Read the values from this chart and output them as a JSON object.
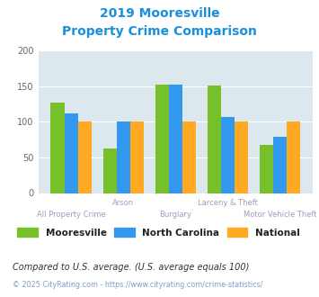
{
  "title_line1": "2019 Mooresville",
  "title_line2": "Property Crime Comparison",
  "categories": [
    "All Property Crime",
    "Arson",
    "Burglary",
    "Larceny & Theft",
    "Motor Vehicle Theft"
  ],
  "mooresville": [
    127,
    63,
    152,
    151,
    67
  ],
  "north_carolina": [
    112,
    100,
    152,
    107,
    79
  ],
  "national": [
    100,
    100,
    100,
    100,
    100
  ],
  "color_mooresville": "#76c02a",
  "color_nc": "#3399ee",
  "color_national": "#ffaa22",
  "ylim": [
    0,
    200
  ],
  "yticks": [
    0,
    50,
    100,
    150,
    200
  ],
  "legend_labels": [
    "Mooresville",
    "North Carolina",
    "National"
  ],
  "footnote1": "Compared to U.S. average. (U.S. average equals 100)",
  "footnote2": "© 2025 CityRating.com - https://www.cityrating.com/crime-statistics/",
  "bg_color": "#dde8ee",
  "title_color": "#1a90dd",
  "category_label_color": "#aa99bb",
  "footnote1_color": "#333333",
  "footnote2_color": "#8899cc"
}
